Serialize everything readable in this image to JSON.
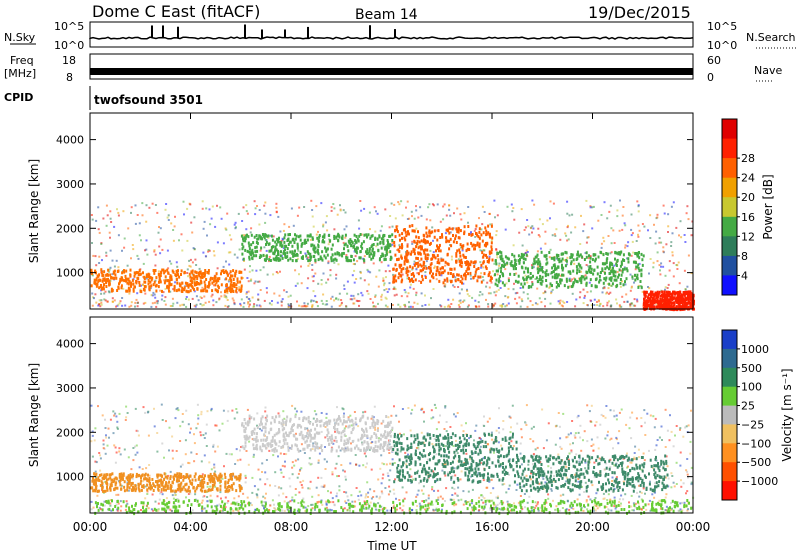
{
  "header": {
    "title": "Dome C East (fitACF)",
    "beam": "Beam 14",
    "date": "19/Dec/2015"
  },
  "strips": {
    "nsky_label": "N.Sky",
    "nsky_ticks": [
      "10^5",
      "10^0"
    ],
    "nsearch_label": "N.Search",
    "nsearch_ticks": [
      "10^5",
      "10^0"
    ],
    "freq_label_1": "Freq",
    "freq_label_2": "[MHz]",
    "freq_ticks": [
      "18",
      "8"
    ],
    "nave_label": "Nave",
    "nave_ticks": [
      "60",
      "0"
    ],
    "cpid_label": "CPID",
    "cpid_value": "twofsound 3501"
  },
  "chart_data": [
    {
      "type": "heatmap",
      "title": "Power",
      "ylabel": "Slant Range [km]",
      "xlabel": "",
      "x_ticks": [
        "00:00",
        "04:00",
        "08:00",
        "12:00",
        "16:00",
        "20:00",
        "00:00"
      ],
      "y_ticks": [
        "1000",
        "2000",
        "3000",
        "4000"
      ],
      "ylim": [
        180,
        4600
      ],
      "colorbar_label": "Power [dB]",
      "colorbar_ticks": [
        "4",
        "8",
        "12",
        "16",
        "20",
        "24",
        "28"
      ],
      "colorbar_colors": [
        "#1010ff",
        "#2050a0",
        "#2e7d5a",
        "#44aa44",
        "#c8c830",
        "#f0a000",
        "#ff6000",
        "#ff2000",
        "#e00000"
      ],
      "bands": [
        {
          "t0": 0.0,
          "t1": 6.0,
          "r0": 600,
          "r1": 1100,
          "color": "#ff7000"
        },
        {
          "t0": 6.0,
          "t1": 12.0,
          "r0": 1300,
          "r1": 1900,
          "color": "#44aa44"
        },
        {
          "t0": 12.0,
          "t1": 16.0,
          "r0": 800,
          "r1": 2100,
          "color": "#ff6000"
        },
        {
          "t0": 16.0,
          "t1": 22.0,
          "r0": 700,
          "r1": 1500,
          "color": "#44aa44"
        },
        {
          "t0": 22.0,
          "t1": 24.0,
          "r0": 200,
          "r1": 600,
          "color": "#ff2000"
        }
      ]
    },
    {
      "type": "heatmap",
      "title": "Velocity",
      "ylabel": "Slant Range [km]",
      "xlabel": "Time UT",
      "x_ticks": [
        "00:00",
        "04:00",
        "08:00",
        "12:00",
        "16:00",
        "20:00",
        "00:00"
      ],
      "y_ticks": [
        "1000",
        "2000",
        "3000",
        "4000"
      ],
      "ylim": [
        180,
        4600
      ],
      "colorbar_label": "Velocity [m s⁻¹]",
      "colorbar_ticks": [
        "1000",
        "500",
        "100",
        "25",
        "−25",
        "−100",
        "−500",
        "−1000"
      ],
      "colorbar_colors": [
        "#1a3fc8",
        "#2e6a90",
        "#2e8a5a",
        "#66cc33",
        "#bbbbbb",
        "#f0c060",
        "#ff9020",
        "#ff5000",
        "#ff1000"
      ],
      "bands": [
        {
          "t0": 0.0,
          "t1": 6.0,
          "r0": 700,
          "r1": 1100,
          "color": "#f09020"
        },
        {
          "t0": 6.0,
          "t1": 12.0,
          "r0": 1600,
          "r1": 2400,
          "color": "#cccccc"
        },
        {
          "t0": 12.0,
          "t1": 17.0,
          "r0": 900,
          "r1": 2000,
          "color": "#3e8a6a"
        },
        {
          "t0": 17.0,
          "t1": 23.0,
          "r0": 700,
          "r1": 1500,
          "color": "#3e8a6a"
        },
        {
          "t0": 0.0,
          "t1": 24.0,
          "r0": 200,
          "r1": 500,
          "color": "#66cc33"
        }
      ]
    }
  ]
}
